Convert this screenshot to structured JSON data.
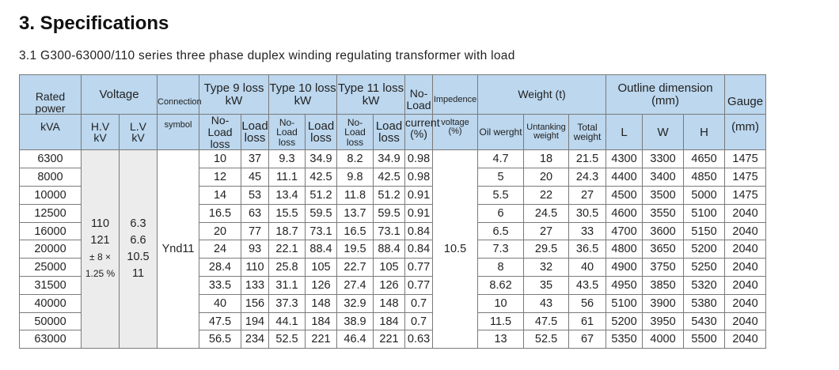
{
  "heading": "3. Specifications",
  "subheading": "3.1 G300-63000/110 series three phase duplex winding regulating transformer with load",
  "table": {
    "headers": {
      "rated_power_1": "Rated power",
      "rated_power_2": "kVA",
      "voltage": "Voltage",
      "hv": "H.V",
      "hv_unit": "kV",
      "lv": "L.V",
      "lv_unit": "kV",
      "connection_1": "Connection",
      "connection_2": "symbol",
      "type9_1": "Type 9 loss",
      "type9_2": "kW",
      "type10_1": "Type 10 loss",
      "type10_2": "kW",
      "type11_1": "Type 11 loss",
      "type11_2": "kW",
      "noload_1": "No-Load",
      "noload_2": "loss",
      "load_1": "Load",
      "load_2": "loss",
      "noload_current_1": "No-Load",
      "noload_current_2": "current",
      "noload_current_3": "(%)",
      "impedance_1": "Impedence",
      "impedance_2": "voltage",
      "impedance_3": "(%)",
      "weight": "Weight (t)",
      "oil_weight": "Oil werght",
      "untanking_1": "Untanking",
      "untanking_2": "weight",
      "total_1": "Total",
      "total_2": "weight",
      "outline_1": "Outline dimension",
      "outline_2": "(mm)",
      "dim_l": "L",
      "dim_w": "W",
      "dim_h": "H",
      "gauge_1": "Gauge",
      "gauge_2": "(mm)"
    },
    "merged": {
      "hv_lines": [
        "110",
        "121",
        "± 8 ×",
        "1.25 %"
      ],
      "lv_lines": [
        "6.3",
        "6.6",
        "10.5",
        "11"
      ],
      "connection_symbol": "Ynd11",
      "impedance_voltage": "10.5"
    },
    "rows": [
      [
        "6300",
        "10",
        "37",
        "9.3",
        "34.9",
        "8.2",
        "34.9",
        "0.98",
        "4.7",
        "18",
        "21.5",
        "4300",
        "3300",
        "4650",
        "1475"
      ],
      [
        "8000",
        "12",
        "45",
        "11.1",
        "42.5",
        "9.8",
        "42.5",
        "0.98",
        "5",
        "20",
        "24.3",
        "4400",
        "3400",
        "4850",
        "1475"
      ],
      [
        "10000",
        "14",
        "53",
        "13.4",
        "51.2",
        "11.8",
        "51.2",
        "0.91",
        "5.5",
        "22",
        "27",
        "4500",
        "3500",
        "5000",
        "1475"
      ],
      [
        "12500",
        "16.5",
        "63",
        "15.5",
        "59.5",
        "13.7",
        "59.5",
        "0.91",
        "6",
        "24.5",
        "30.5",
        "4600",
        "3550",
        "5100",
        "2040"
      ],
      [
        "16000",
        "20",
        "77",
        "18.7",
        "73.1",
        "16.5",
        "73.1",
        "0.84",
        "6.5",
        "27",
        "33",
        "4700",
        "3600",
        "5150",
        "2040"
      ],
      [
        "20000",
        "24",
        "93",
        "22.1",
        "88.4",
        "19.5",
        "88.4",
        "0.84",
        "7.3",
        "29.5",
        "36.5",
        "4800",
        "3650",
        "5200",
        "2040"
      ],
      [
        "25000",
        "28.4",
        "110",
        "25.8",
        "105",
        "22.7",
        "105",
        "0.77",
        "8",
        "32",
        "40",
        "4900",
        "3750",
        "5250",
        "2040"
      ],
      [
        "31500",
        "33.5",
        "133",
        "31.1",
        "126",
        "27.4",
        "126",
        "0.77",
        "8.62",
        "35",
        "43.5",
        "4950",
        "3850",
        "5320",
        "2040"
      ],
      [
        "40000",
        "40",
        "156",
        "37.3",
        "148",
        "32.9",
        "148",
        "0.7",
        "10",
        "43",
        "56",
        "5100",
        "3900",
        "5380",
        "2040"
      ],
      [
        "50000",
        "47.5",
        "194",
        "44.1",
        "184",
        "38.9",
        "184",
        "0.7",
        "11.5",
        "47.5",
        "61",
        "5200",
        "3950",
        "5430",
        "2040"
      ],
      [
        "63000",
        "56.5",
        "234",
        "52.5",
        "221",
        "46.4",
        "221",
        "0.63",
        "13",
        "52.5",
        "67",
        "5350",
        "4000",
        "5500",
        "2040"
      ]
    ]
  }
}
